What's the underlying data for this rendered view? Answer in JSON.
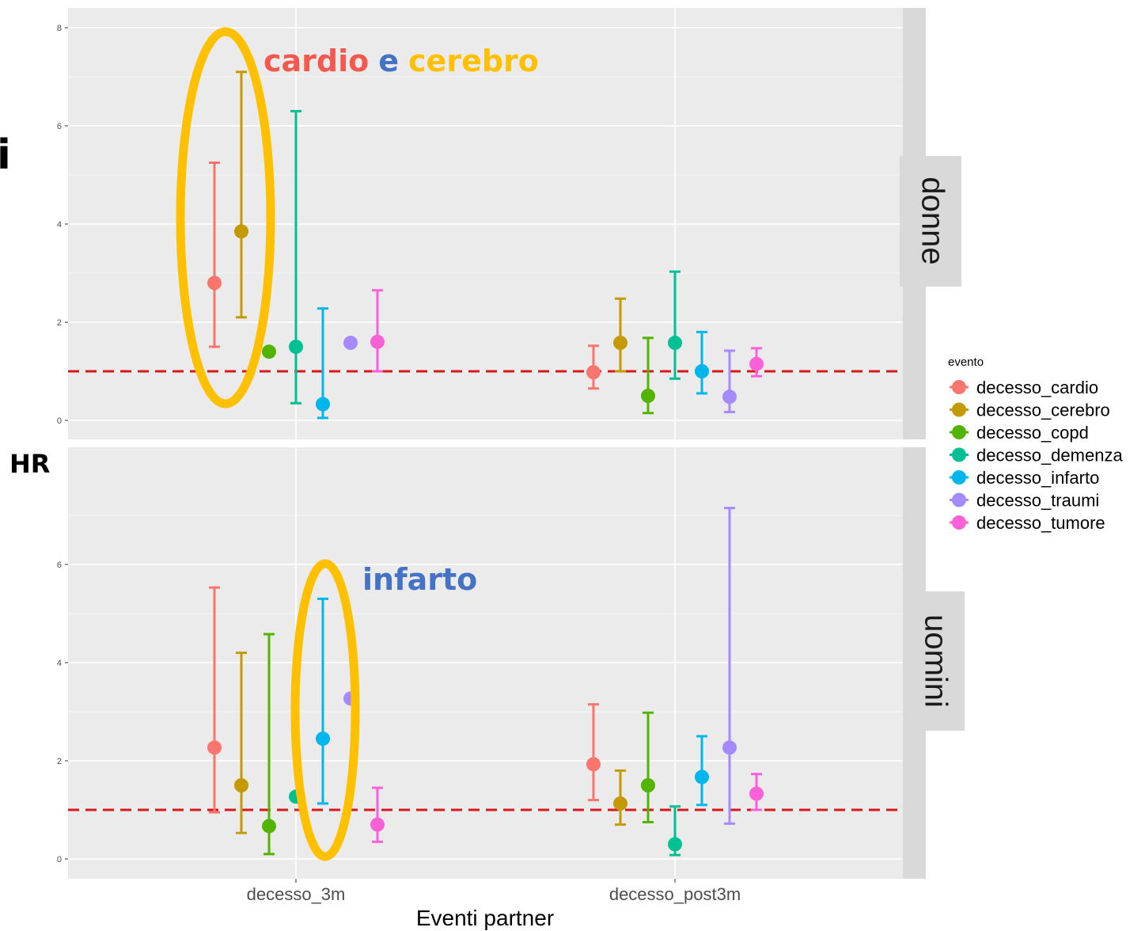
{
  "chart_data": {
    "type": "scatter",
    "subtype": "point-range (HR with confidence intervals), faceted",
    "xlabel": "Eventi partner",
    "ylabel": "HR",
    "categories": [
      "decesso_3m",
      "decesso_post3m"
    ],
    "legend": {
      "title": "evento",
      "position": "right",
      "items": [
        {
          "name": "decesso_cardio",
          "color": "#F8766D"
        },
        {
          "name": "decesso_cerebro",
          "color": "#C49A00"
        },
        {
          "name": "decesso_copd",
          "color": "#53B400"
        },
        {
          "name": "decesso_demenza",
          "color": "#00C094"
        },
        {
          "name": "decesso_infarto",
          "color": "#00B6EB"
        },
        {
          "name": "decesso_traumi",
          "color": "#A58AFF"
        },
        {
          "name": "decesso_tumore",
          "color": "#FB61D7"
        }
      ]
    },
    "reference_line": {
      "y": 1,
      "color": "#d7191c",
      "style": "dashed"
    },
    "panels": [
      {
        "strip": "donne",
        "ylim": [
          -0.2,
          8.2
        ],
        "yticks": [
          0,
          2,
          4,
          6,
          8
        ],
        "points": [
          {
            "cat": "decesso_3m",
            "evento": "decesso_cardio",
            "hr": 2.8,
            "lo": 1.5,
            "hi": 5.25
          },
          {
            "cat": "decesso_3m",
            "evento": "decesso_cerebro",
            "hr": 3.85,
            "lo": 2.1,
            "hi": 7.1
          },
          {
            "cat": "decesso_3m",
            "evento": "decesso_copd",
            "hr": 1.4
          },
          {
            "cat": "decesso_3m",
            "evento": "decesso_demenza",
            "hr": 1.5,
            "lo": 0.35,
            "hi": 6.3
          },
          {
            "cat": "decesso_3m",
            "evento": "decesso_infarto",
            "hr": 0.33,
            "lo": 0.05,
            "hi": 2.28
          },
          {
            "cat": "decesso_3m",
            "evento": "decesso_traumi",
            "hr": 1.58
          },
          {
            "cat": "decesso_3m",
            "evento": "decesso_tumore",
            "hr": 1.6,
            "lo": 1.0,
            "hi": 2.65
          },
          {
            "cat": "decesso_post3m",
            "evento": "decesso_cardio",
            "hr": 0.98,
            "lo": 0.65,
            "hi": 1.52
          },
          {
            "cat": "decesso_post3m",
            "evento": "decesso_cerebro",
            "hr": 1.58,
            "lo": 1.0,
            "hi": 2.48
          },
          {
            "cat": "decesso_post3m",
            "evento": "decesso_copd",
            "hr": 0.5,
            "lo": 0.15,
            "hi": 1.68
          },
          {
            "cat": "decesso_post3m",
            "evento": "decesso_demenza",
            "hr": 1.58,
            "lo": 0.85,
            "hi": 3.03
          },
          {
            "cat": "decesso_post3m",
            "evento": "decesso_infarto",
            "hr": 1.0,
            "lo": 0.55,
            "hi": 1.8
          },
          {
            "cat": "decesso_post3m",
            "evento": "decesso_traumi",
            "hr": 0.48,
            "lo": 0.17,
            "hi": 1.42
          },
          {
            "cat": "decesso_post3m",
            "evento": "decesso_tumore",
            "hr": 1.15,
            "lo": 0.9,
            "hi": 1.47
          }
        ]
      },
      {
        "strip": "uomini",
        "ylim": [
          -0.4,
          7.6
        ],
        "yticks": [
          0,
          2,
          4,
          6
        ],
        "points": [
          {
            "cat": "decesso_3m",
            "evento": "decesso_cardio",
            "hr": 2.27,
            "lo": 0.95,
            "hi": 5.53
          },
          {
            "cat": "decesso_3m",
            "evento": "decesso_cerebro",
            "hr": 1.5,
            "lo": 0.53,
            "hi": 4.2
          },
          {
            "cat": "decesso_3m",
            "evento": "decesso_copd",
            "hr": 0.67,
            "lo": 0.1,
            "hi": 4.58
          },
          {
            "cat": "decesso_3m",
            "evento": "decesso_demenza",
            "hr": 1.27
          },
          {
            "cat": "decesso_3m",
            "evento": "decesso_infarto",
            "hr": 2.45,
            "lo": 1.13,
            "hi": 5.3
          },
          {
            "cat": "decesso_3m",
            "evento": "decesso_traumi",
            "hr": 3.27
          },
          {
            "cat": "decesso_3m",
            "evento": "decesso_tumore",
            "hr": 0.7,
            "lo": 0.35,
            "hi": 1.45
          },
          {
            "cat": "decesso_post3m",
            "evento": "decesso_cardio",
            "hr": 1.93,
            "lo": 1.2,
            "hi": 3.15
          },
          {
            "cat": "decesso_post3m",
            "evento": "decesso_cerebro",
            "hr": 1.13,
            "lo": 0.7,
            "hi": 1.8
          },
          {
            "cat": "decesso_post3m",
            "evento": "decesso_copd",
            "hr": 1.5,
            "lo": 0.75,
            "hi": 2.98
          },
          {
            "cat": "decesso_post3m",
            "evento": "decesso_demenza",
            "hr": 0.3,
            "lo": 0.08,
            "hi": 1.07
          },
          {
            "cat": "decesso_post3m",
            "evento": "decesso_infarto",
            "hr": 1.67,
            "lo": 1.1,
            "hi": 2.5
          },
          {
            "cat": "decesso_post3m",
            "evento": "decesso_traumi",
            "hr": 2.27,
            "lo": 0.72,
            "hi": 7.15
          },
          {
            "cat": "decesso_post3m",
            "evento": "decesso_tumore",
            "hr": 1.33,
            "lo": 1.0,
            "hi": 1.73
          }
        ]
      }
    ]
  },
  "annotations": {
    "top_word1": "cardio",
    "top_word_sep": "e",
    "top_word2": "cerebro",
    "bottom_word": "infarto",
    "hr_side_label": "HR",
    "edge_fragment": "i",
    "highlight_color": "#FFC000",
    "annotation_red": "#F4594F",
    "annotation_blue": "#4472C4",
    "annotation_gold": "#FFC000"
  }
}
